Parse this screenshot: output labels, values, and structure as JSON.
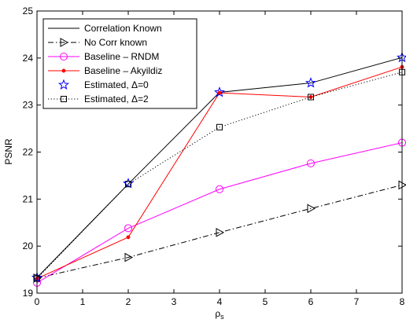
{
  "chart_data": {
    "type": "line",
    "title": "",
    "xlabel_main": "ρ",
    "xlabel_sub": "s",
    "ylabel": "PSNR",
    "xlim": [
      0,
      8
    ],
    "ylim": [
      19,
      25
    ],
    "xticks": [
      0,
      1,
      2,
      3,
      4,
      5,
      6,
      7,
      8
    ],
    "yticks": [
      19,
      20,
      21,
      22,
      23,
      24,
      25
    ],
    "grid": false,
    "legend_position": "top-left",
    "series": [
      {
        "name": "Correlation Known",
        "x": [
          0,
          2,
          4,
          6,
          8
        ],
        "y": [
          19.33,
          21.32,
          23.27,
          23.47,
          24.01
        ],
        "color": "#000000",
        "dash": "solid",
        "marker": "none"
      },
      {
        "name": "No Corr known",
        "x": [
          0,
          2,
          4,
          6,
          8
        ],
        "y": [
          19.32,
          19.76,
          20.29,
          20.8,
          21.3
        ],
        "color": "#000000",
        "dash": "dashdot",
        "marker": "triangle-right"
      },
      {
        "name": "Baseline –  RNDM",
        "x": [
          0,
          2,
          4,
          6,
          8
        ],
        "y": [
          19.22,
          20.38,
          21.21,
          21.76,
          22.2
        ],
        "color": "#ff00ff",
        "dash": "solid",
        "marker": "circle"
      },
      {
        "name": "Baseline – Akyildiz",
        "x": [
          0,
          2,
          4,
          6,
          8
        ],
        "y": [
          19.31,
          20.19,
          23.26,
          23.17,
          23.81
        ],
        "color": "#ff0000",
        "dash": "solid",
        "marker": "dot"
      },
      {
        "name": "Estimated, Δ=0",
        "x": [
          0,
          2,
          4,
          6,
          8
        ],
        "y": [
          19.33,
          21.33,
          23.27,
          23.47,
          24.01
        ],
        "color": "#0000ff",
        "dash": "none",
        "marker": "star"
      },
      {
        "name": "Estimated, Δ=2",
        "x": [
          0,
          2,
          4,
          6,
          8
        ],
        "y": [
          19.31,
          21.32,
          22.53,
          23.17,
          23.7
        ],
        "color": "#000000",
        "dash": "dotted",
        "marker": "square"
      }
    ]
  }
}
